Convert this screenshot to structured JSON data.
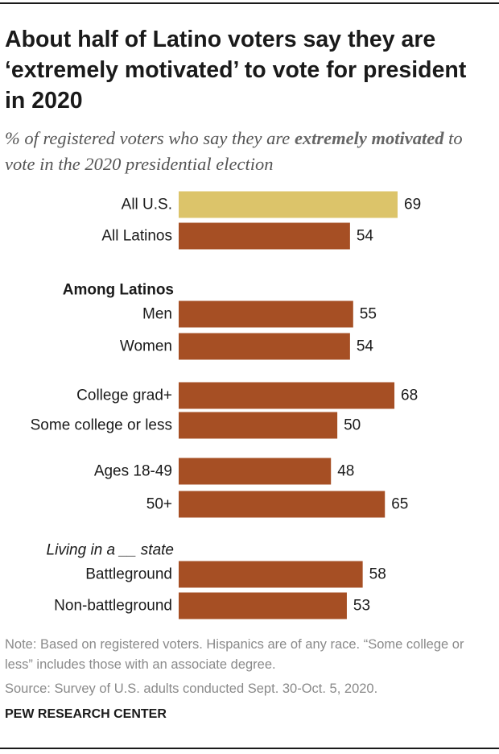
{
  "header": {
    "title": "About half of Latino voters say they are ‘extremely motivated’ to vote for president in 2020",
    "subtitle_pre": "% of registered voters who say they are ",
    "subtitle_bold": "extremely motivated",
    "subtitle_post": " to vote in the 2020 presidential election"
  },
  "chart_data": {
    "type": "bar",
    "orientation": "horizontal",
    "title": "About half of Latino voters say they are ‘extremely motivated’ to vote for president in 2020",
    "xlim": [
      0,
      100
    ],
    "group_labels": [
      {
        "text": "Among Latinos",
        "style": "bold",
        "before_index": 2
      },
      {
        "text": "Living in a __ state",
        "style": "italic",
        "before_index": 8
      }
    ],
    "categories": [
      "All U.S.",
      "All Latinos",
      "Men",
      "Women",
      "College grad+",
      "Some college or less",
      "Ages 18-49",
      "50+",
      "Battleground",
      "Non-battleground"
    ],
    "values": [
      69,
      54,
      55,
      54,
      68,
      50,
      48,
      65,
      58,
      53
    ],
    "colors": {
      "highlight": "#dcc46a",
      "default": "#a64f24"
    },
    "highlight_index": 0
  },
  "footer": {
    "note": "Note: Based on registered voters. Hispanics are of any race. “Some college or less” includes those with an associate degree.",
    "source": "Source: Survey of U.S. adults conducted Sept. 30-Oct. 5, 2020.",
    "brand": "PEW RESEARCH CENTER"
  }
}
